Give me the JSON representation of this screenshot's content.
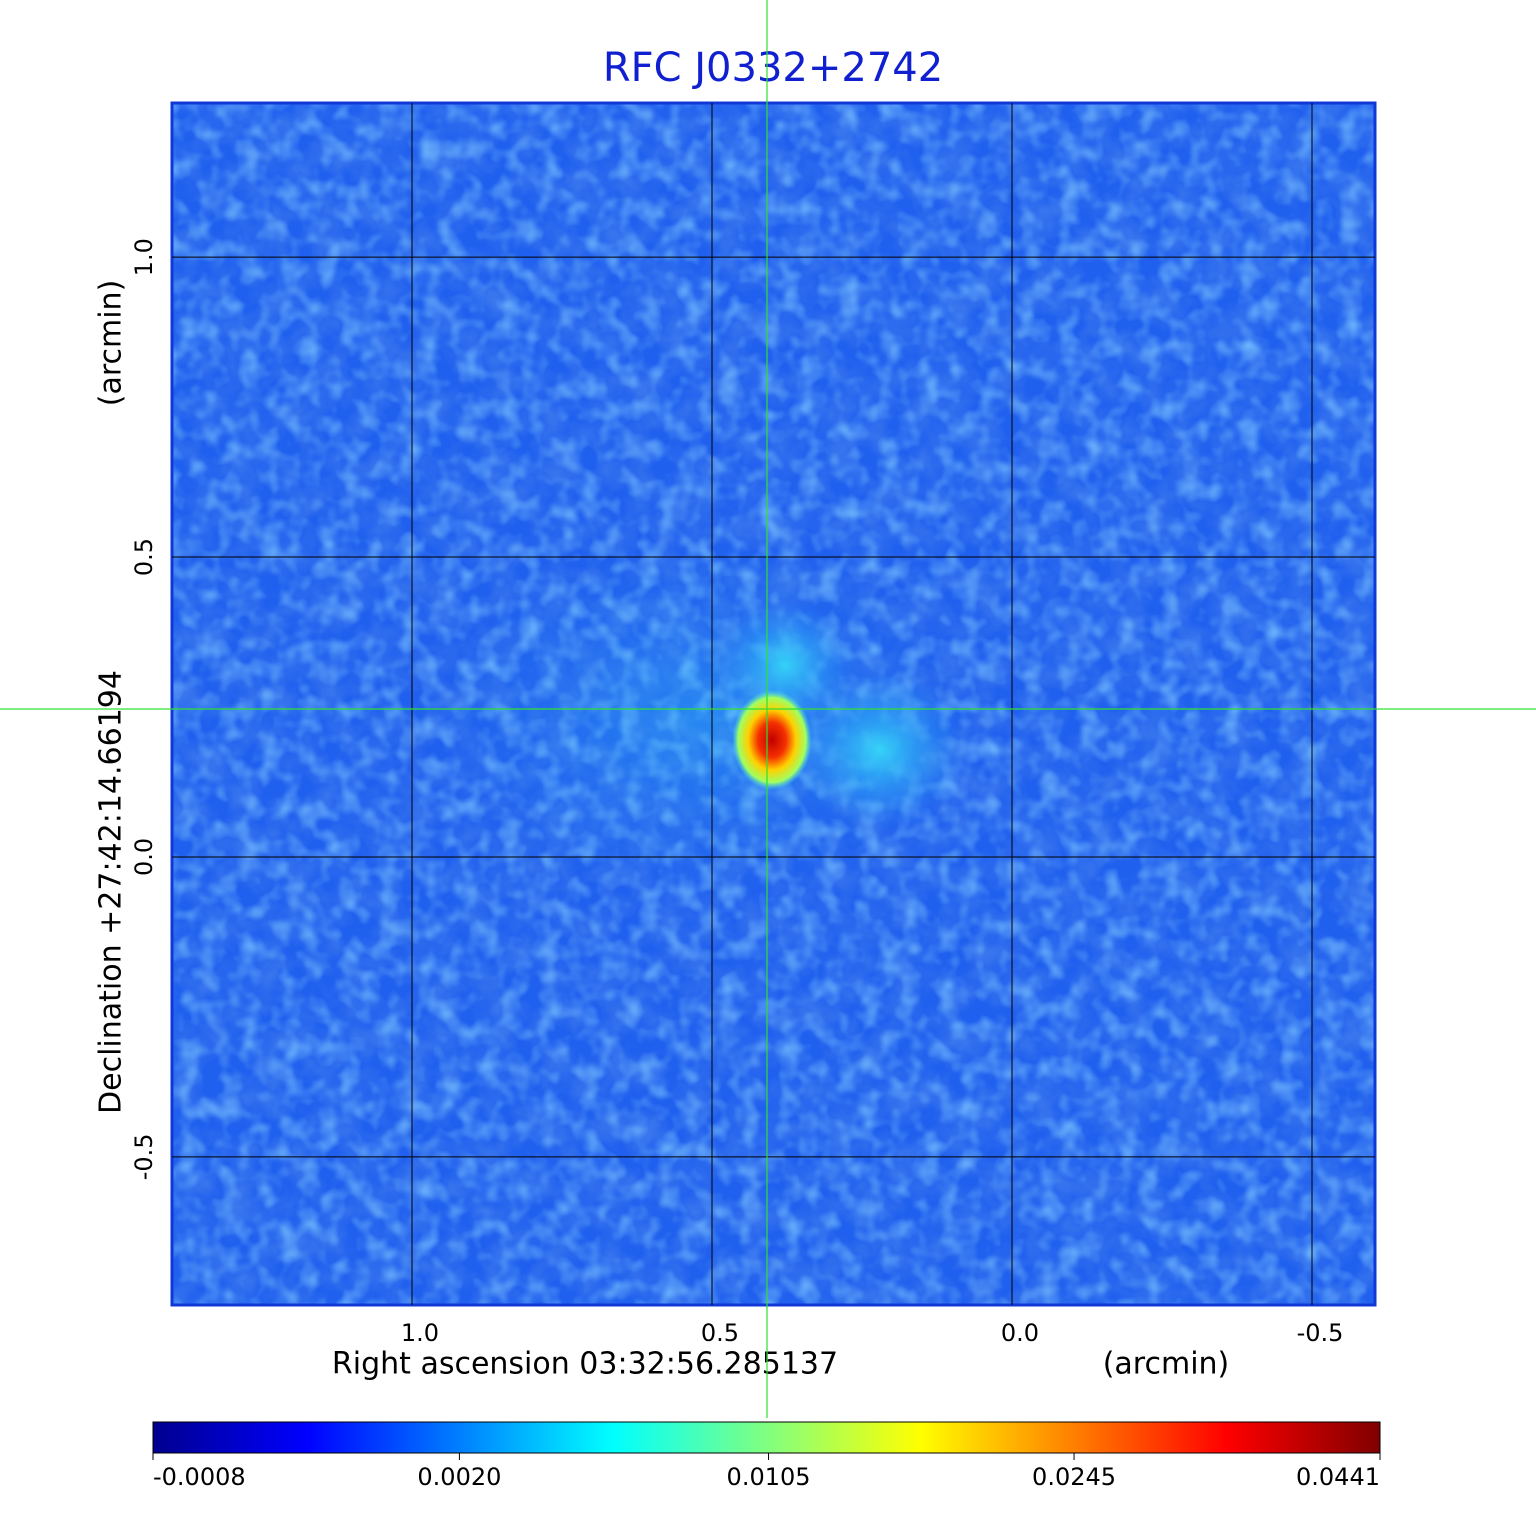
{
  "chart_data": {
    "type": "image",
    "title": "RFC J0332+2742",
    "x_label": "Right ascension  03:32:56.285137",
    "x_unit": "(arcmin)",
    "y_label": "Declination  +27:42:14.66194",
    "y_unit": "(arcmin)",
    "xlim": [
      1.4,
      -0.605
    ],
    "ylim": [
      -0.747,
      1.257
    ],
    "xticks": [
      {
        "value": 1,
        "label": "1.0"
      },
      0.5,
      {
        "value": 0,
        "label": "0.0"
      },
      -0.5
    ],
    "yticks": [
      -0.5,
      {
        "value": 0,
        "label": "0.0"
      },
      0.5,
      {
        "value": 1,
        "label": "1.0"
      }
    ],
    "grid": true,
    "colorbar": {
      "clim": [
        -0.0008,
        0.0441
      ],
      "scale": "sqrt",
      "ticks": [
        -0.0008,
        {
          "value": 0.002,
          "label": "0.0020"
        },
        0.0105,
        0.0245,
        0.0441
      ]
    }
  }
}
